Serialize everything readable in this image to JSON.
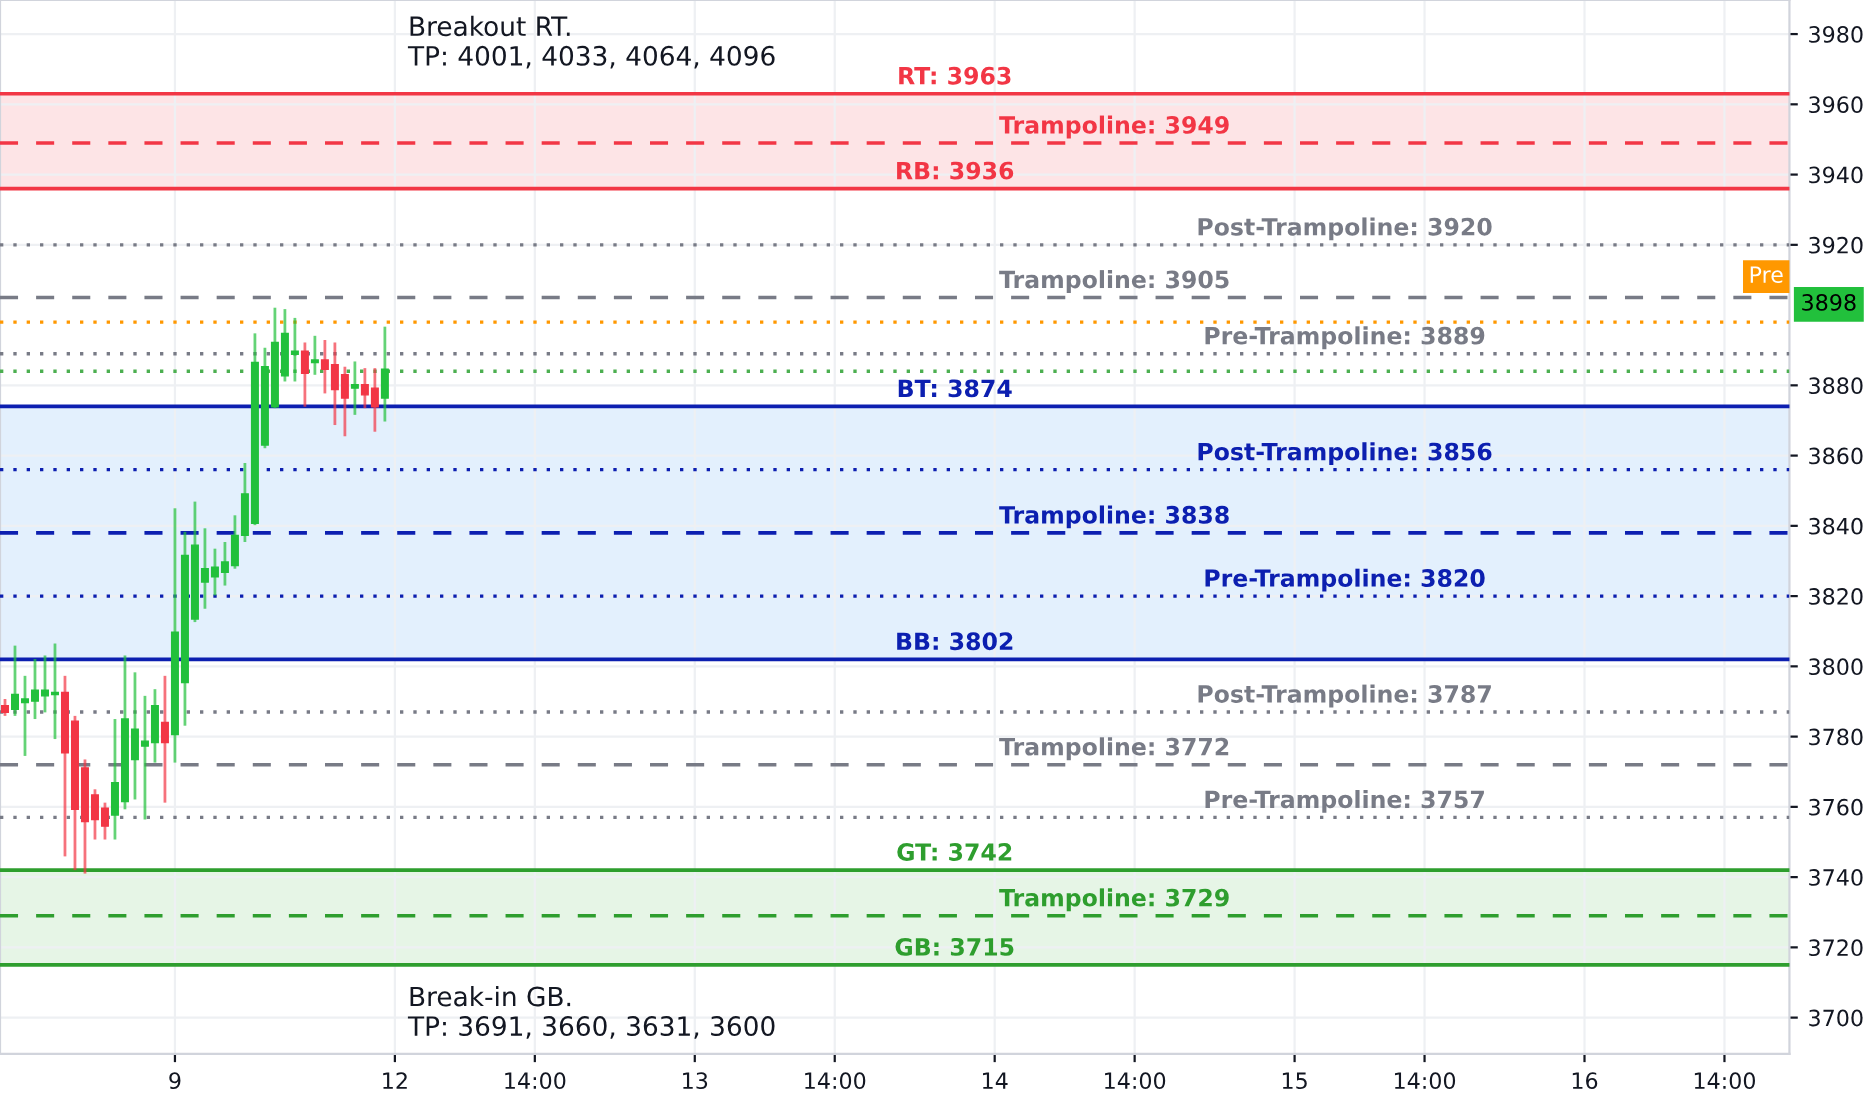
{
  "chart_data": {
    "type": "candlestick",
    "categories": [
      null,
      null,
      null,
      null,
      null,
      null,
      null,
      null,
      null,
      null,
      null,
      null,
      null,
      null,
      null,
      null,
      null,
      "9",
      null,
      null,
      null,
      null,
      null,
      null,
      null,
      null,
      null,
      null,
      null,
      null,
      null,
      null,
      null,
      null,
      null,
      null,
      null,
      null,
      null,
      "12",
      null,
      null,
      null,
      null,
      null,
      null,
      null,
      null,
      null,
      null,
      null,
      null,
      null,
      "14:00",
      null,
      null,
      null,
      null,
      null,
      null,
      null,
      null,
      null,
      null,
      null,
      null,
      null,
      null,
      null,
      "13",
      null,
      null,
      null,
      null,
      null,
      null,
      null,
      null,
      null,
      null,
      null,
      null,
      null,
      "14:00",
      null,
      null,
      null,
      null,
      null,
      null,
      null,
      null,
      null,
      null,
      null,
      null,
      null,
      null,
      null,
      "14",
      null,
      null,
      null,
      null,
      null,
      null,
      null,
      null,
      null,
      null,
      null,
      null,
      null,
      "14:00",
      null,
      null,
      null,
      null,
      null,
      null,
      null,
      null,
      null,
      null,
      null,
      null,
      null,
      null,
      null,
      "15",
      null,
      null,
      null,
      null,
      null,
      null,
      null,
      null,
      null,
      null,
      null,
      null,
      "14:00",
      null,
      null,
      null,
      null,
      null,
      null,
      null,
      null,
      null,
      null,
      null,
      null,
      null,
      null,
      null,
      "16",
      null,
      null,
      null,
      null,
      null,
      null,
      null,
      null,
      null,
      null,
      null,
      null,
      null,
      "14:00",
      null,
      null,
      null,
      null,
      null,
      null
    ],
    "ohlc": [
      [
        3788.8,
        3790.7,
        3785.9,
        3786.9
      ],
      [
        3787.8,
        3805.9,
        3785.9,
        3792.0
      ],
      [
        3789.7,
        3797.3,
        3774.5,
        3790.7
      ],
      [
        3790.1,
        3802.1,
        3785.0,
        3793.2
      ],
      [
        3791.6,
        3803.1,
        3786.9,
        3793.2
      ],
      [
        3792.0,
        3806.5,
        3779.3,
        3792.6
      ],
      [
        3792.6,
        3797.3,
        3745.9,
        3775.4
      ],
      [
        3784.4,
        3785.9,
        3742.0,
        3759.3
      ],
      [
        3771.1,
        3773.5,
        3741.0,
        3755.8
      ],
      [
        3763.4,
        3765.0,
        3750.7,
        3756.4
      ],
      [
        3759.6,
        3761.2,
        3750.7,
        3754.5
      ],
      [
        3757.7,
        3785.0,
        3750.7,
        3766.9
      ],
      [
        3761.5,
        3803.1,
        3759.3,
        3785.0
      ],
      [
        3773.5,
        3798.3,
        3762.1,
        3782.1
      ],
      [
        3777.3,
        3791.6,
        3756.4,
        3778.7
      ],
      [
        3778.3,
        3793.5,
        3772.6,
        3788.8
      ],
      [
        3784.0,
        3797.3,
        3761.2,
        3778.3
      ],
      [
        3780.6,
        3845.0,
        3772.6,
        3809.7
      ],
      [
        3795.4,
        3838.3,
        3783.1,
        3831.6
      ],
      [
        3813.5,
        3846.9,
        3812.6,
        3834.5
      ],
      [
        3824.0,
        3839.3,
        3816.4,
        3827.8
      ],
      [
        3825.5,
        3833.5,
        3820.2,
        3828.2
      ],
      [
        3826.8,
        3835.4,
        3823.0,
        3829.7
      ],
      [
        3828.7,
        3843.0,
        3827.8,
        3837.3
      ],
      [
        3837.3,
        3857.9,
        3835.4,
        3849.1
      ],
      [
        3840.7,
        3894.8,
        3840.2,
        3886.5
      ],
      [
        3863.0,
        3890.7,
        3862.1,
        3885.3
      ],
      [
        3873.9,
        3902.1,
        3873.5,
        3892.2
      ],
      [
        3882.7,
        3901.7,
        3881.1,
        3894.8
      ],
      [
        3888.8,
        3899.2,
        3881.1,
        3889.7
      ],
      [
        3889.7,
        3892.2,
        3873.9,
        3883.4
      ],
      [
        3886.5,
        3894.1,
        3883.0,
        3887.2
      ],
      [
        3887.2,
        3892.9,
        3877.7,
        3884.6
      ],
      [
        3885.9,
        3892.2,
        3868.7,
        3878.8
      ],
      [
        3883.0,
        3885.3,
        3865.5,
        3876.4
      ],
      [
        3879.2,
        3886.8,
        3871.6,
        3880.2
      ],
      [
        3880.2,
        3884.9,
        3873.5,
        3877.3
      ],
      [
        3879.2,
        3884.9,
        3866.8,
        3873.9
      ],
      [
        3876.4,
        3896.7,
        3869.7,
        3884.6
      ],
      null,
      null,
      null,
      null,
      null,
      null,
      null,
      null,
      null,
      null,
      null,
      null,
      null,
      null,
      null,
      null,
      null,
      null,
      null,
      null,
      null,
      null,
      null,
      null,
      null,
      null,
      null,
      null,
      null,
      null,
      null,
      null,
      null,
      null,
      null,
      null,
      null,
      null,
      null,
      null,
      null,
      null,
      null,
      null,
      null,
      null,
      null,
      null,
      null,
      null,
      null,
      null,
      null,
      null,
      null,
      null,
      null,
      null,
      null,
      null,
      null,
      null,
      null,
      null,
      null,
      null,
      null,
      null,
      null,
      null,
      null,
      null,
      null,
      null,
      null,
      null,
      null,
      null,
      null,
      null,
      null,
      null,
      null,
      null,
      null,
      null,
      null,
      null,
      null,
      null,
      null,
      null,
      null,
      null,
      null,
      null,
      null,
      null,
      null,
      null,
      null,
      null,
      null,
      null,
      null,
      null,
      null,
      null,
      null,
      null,
      null,
      null,
      null,
      null,
      null,
      null,
      null,
      null,
      null,
      null,
      null,
      null,
      null,
      null,
      null,
      null,
      null,
      null,
      null,
      null,
      null,
      null,
      null,
      null,
      null,
      null,
      null,
      null,
      null,
      null
    ],
    "colors": [
      "#f23645",
      "#22c03c",
      "#22c03c",
      "#22c03c",
      "#22c03c",
      "#22c03c",
      "#f23645",
      "#f23645",
      "#f23645",
      "#f23645",
      "#f23645",
      "#22c03c",
      "#22c03c",
      "#22c03c",
      "#22c03c",
      "#22c03c",
      "#f23645",
      "#22c03c",
      "#22c03c",
      "#22c03c",
      "#22c03c",
      "#22c03c",
      "#22c03c",
      "#22c03c",
      "#22c03c",
      "#22c03c",
      "#22c03c",
      "#22c03c",
      "#22c03c",
      "#22c03c",
      "#f23645",
      "#22c03c",
      "#f23645",
      "#f23645",
      "#f23645",
      "#22c03c",
      "#f23645",
      "#f23645",
      "#22c03c",
      null,
      null,
      null,
      null,
      null,
      null,
      null,
      null,
      null,
      null,
      null,
      null,
      null,
      null,
      null,
      null,
      null,
      null,
      null,
      null,
      null,
      null,
      null,
      null,
      null,
      null,
      null,
      null,
      null,
      null,
      null,
      null,
      null,
      null,
      null,
      null,
      null,
      null,
      null,
      null,
      null,
      null,
      null,
      null,
      null,
      null,
      null,
      null,
      null,
      null,
      null,
      null,
      null,
      null,
      null,
      null,
      null,
      null,
      null,
      null,
      null,
      null,
      null,
      null,
      null,
      null,
      null,
      null,
      null,
      null,
      null,
      null,
      null,
      null,
      null,
      null,
      null,
      null,
      null,
      null,
      null,
      null,
      null,
      null,
      null,
      null,
      null,
      null,
      null,
      null,
      null,
      null,
      null,
      null,
      null,
      null,
      null,
      null,
      null,
      null,
      null,
      null,
      null,
      null,
      null,
      null,
      null,
      null,
      null,
      null,
      null,
      null,
      null,
      null,
      null,
      null,
      null,
      null,
      null,
      null,
      null,
      null,
      null,
      null,
      null,
      null,
      null,
      null,
      null,
      null,
      null,
      null,
      null,
      null,
      null,
      null,
      null,
      null,
      null,
      null
    ],
    "ylim": [
      3689.7,
      3989.7
    ],
    "yticks": [
      3700,
      3720,
      3740,
      3760,
      3780,
      3800,
      3820,
      3840,
      3860,
      3880,
      3920,
      3940,
      3960,
      3980
    ],
    "grid": true,
    "bands": [
      {
        "axis": "y",
        "from": 3936,
        "to": 3963,
        "color": "#fde4e6"
      },
      {
        "axis": "y",
        "from": 3802,
        "to": 3874,
        "color": "#e3f0fd"
      },
      {
        "axis": "y",
        "from": 3715,
        "to": 3742,
        "color": "#e6f5e6"
      }
    ],
    "ref_lines": [
      {
        "axis": "y",
        "value": 3963,
        "label": "RT: 3963",
        "color": "#f23645",
        "line_style": "solid"
      },
      {
        "axis": "y",
        "value": 3949,
        "label": "Trampoline: 3949",
        "color": "#f23645",
        "line_style": "dashed"
      },
      {
        "axis": "y",
        "value": 3936,
        "label": "RB: 3936",
        "color": "#f23645",
        "line_style": "solid"
      },
      {
        "axis": "y",
        "value": 3920,
        "label": "Post-Trampoline: 3920",
        "color": "#787b86",
        "line_style": "dotted"
      },
      {
        "axis": "y",
        "value": 3905,
        "label": "Trampoline: 3905",
        "color": "#787b86",
        "line_style": "dashed"
      },
      {
        "axis": "y",
        "value": 3898,
        "color": "#ff9800",
        "line_style": "dotted"
      },
      {
        "axis": "y",
        "value": 3889,
        "label": "Pre-Trampoline: 3889",
        "color": "#787b86",
        "line_style": "dotted"
      },
      {
        "axis": "y",
        "value": 3884,
        "color": "#4caf50",
        "line_style": "dotted"
      },
      {
        "axis": "y",
        "value": 3874,
        "label": "BT: 3874",
        "color": "#0c1fb0",
        "line_style": "solid"
      },
      {
        "axis": "y",
        "value": 3856,
        "label": "Post-Trampoline: 3856",
        "color": "#0c1fb0",
        "line_style": "dotted"
      },
      {
        "axis": "y",
        "value": 3838,
        "label": "Trampoline: 3838",
        "color": "#0c1fb0",
        "line_style": "dashed"
      },
      {
        "axis": "y",
        "value": 3820,
        "label": "Pre-Trampoline: 3820",
        "color": "#0c1fb0",
        "line_style": "dotted"
      },
      {
        "axis": "y",
        "value": 3802,
        "label": "BB: 3802",
        "color": "#0c1fb0",
        "line_style": "solid"
      },
      {
        "axis": "y",
        "value": 3787,
        "label": "Post-Trampoline: 3787",
        "color": "#787b86",
        "line_style": "dotted"
      },
      {
        "axis": "y",
        "value": 3772,
        "label": "Trampoline: 3772",
        "color": "#787b86",
        "line_style": "dashed"
      },
      {
        "axis": "y",
        "value": 3757,
        "label": "Pre-Trampoline: 3757",
        "color": "#787b86",
        "line_style": "dotted"
      },
      {
        "axis": "y",
        "value": 3742,
        "label": "GT: 3742",
        "color": "#2e9e2e",
        "line_style": "solid"
      },
      {
        "axis": "y",
        "value": 3729,
        "label": "Trampoline: 3729",
        "color": "#2e9e2e",
        "line_style": "dashed"
      },
      {
        "axis": "y",
        "value": 3715,
        "label": "GB: 3715",
        "color": "#2e9e2e",
        "line_style": "solid"
      }
    ],
    "annotations": [
      "Breakout RT.\nTP: 4001, 4033, 4064, 4096",
      "Break-in GB.\nTP: 3691, 3660, 3631, 3600",
      "Pre",
      "3898"
    ]
  }
}
